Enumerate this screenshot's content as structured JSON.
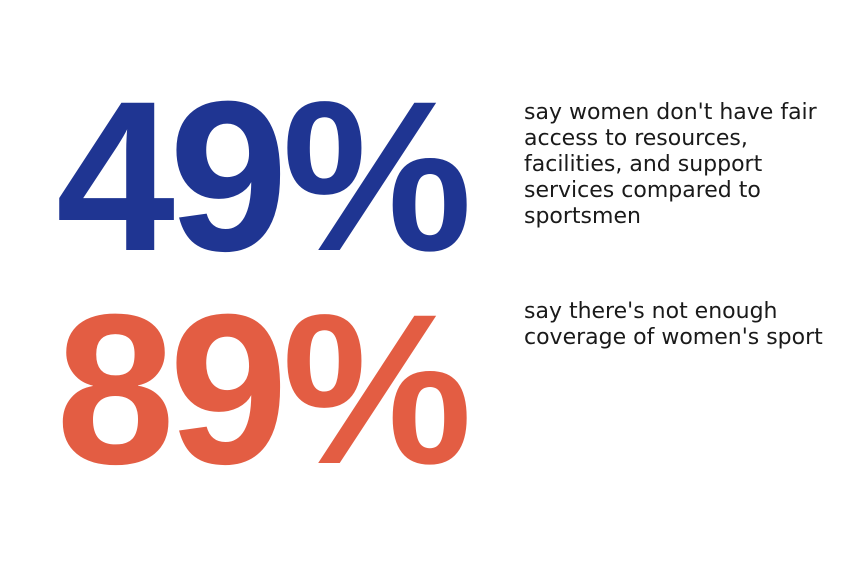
{
  "stats": [
    {
      "value": "49%",
      "color": "#1f3592",
      "description": "say women don't have fair access to resources, facilities, and support services compared to sportsmen"
    },
    {
      "value": "89%",
      "color": "#e35d43",
      "description": "say there's not enough coverage of women's sport"
    }
  ]
}
